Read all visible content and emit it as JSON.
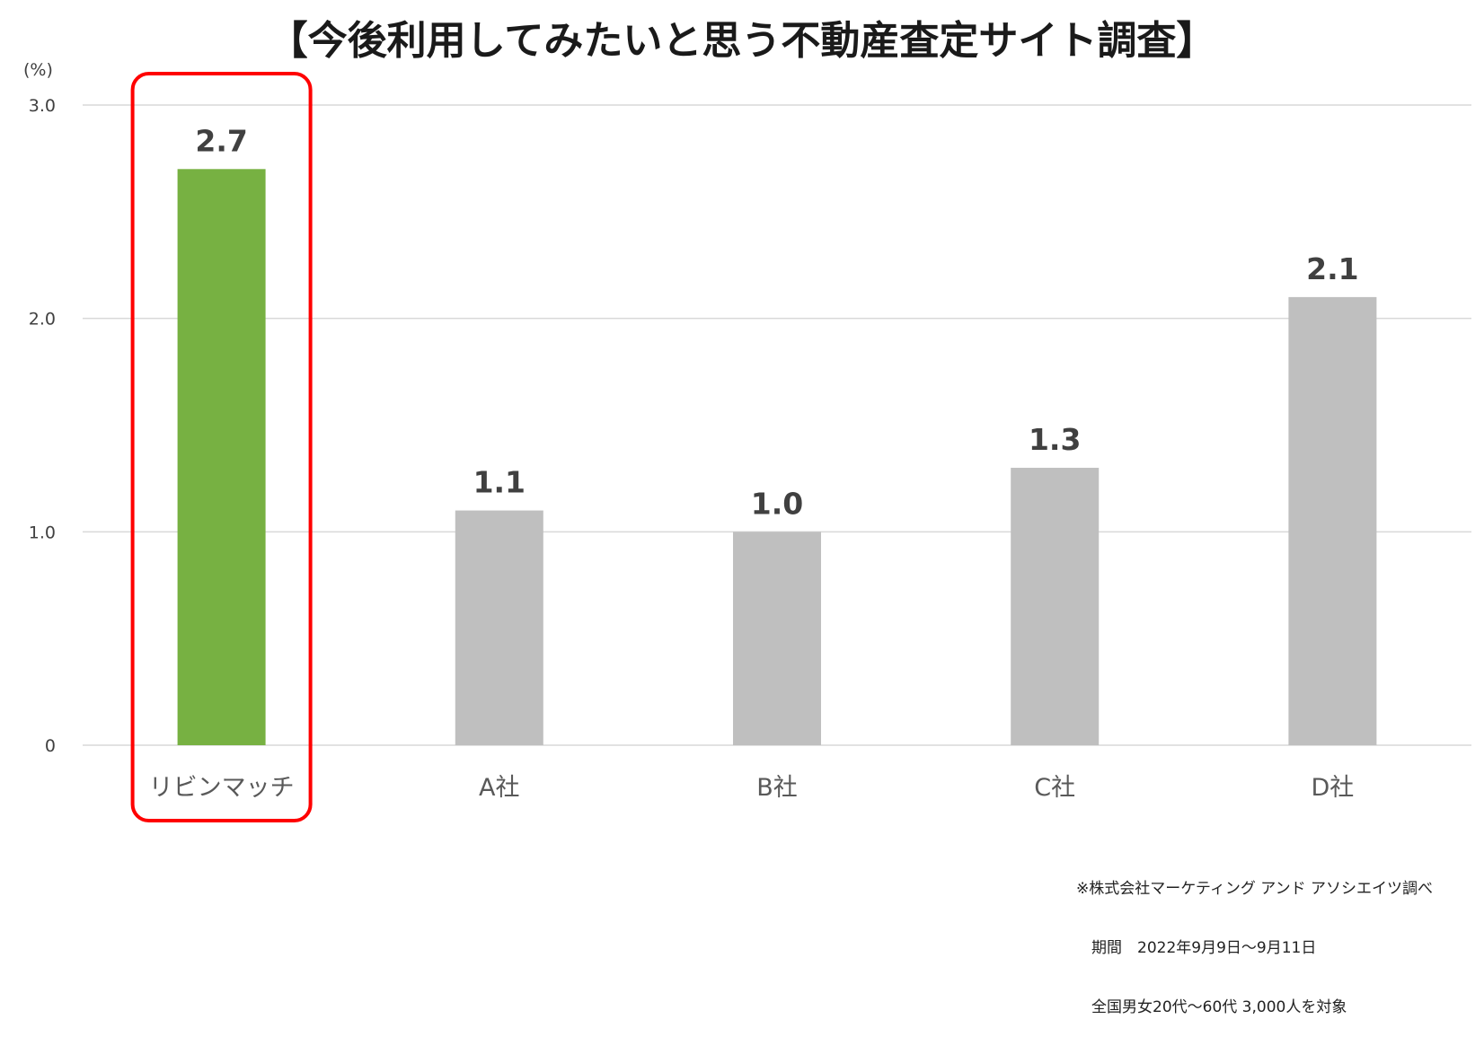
{
  "chart_data": {
    "type": "bar",
    "title": "【今後利用してみたいと思う不動産査定サイト調査】",
    "ylabel": "(%)",
    "xlabel": "",
    "categories": [
      "リビンマッチ",
      "A社",
      "B社",
      "C社",
      "D社"
    ],
    "values": [
      2.7,
      1.1,
      1.0,
      1.3,
      2.1
    ],
    "data_labels": [
      "2.7",
      "1.1",
      "1.0",
      "1.3",
      "2.1"
    ],
    "ylim": [
      0,
      3.0
    ],
    "yticks": [
      0,
      1.0,
      2.0,
      3.0
    ],
    "ytick_labels": [
      "0",
      "1.0",
      "2.0",
      "3.0"
    ],
    "grid": true,
    "legend": "none",
    "highlight_index": 0,
    "colors": {
      "highlight": "#77b142",
      "default": "#bfbfbf",
      "highlight_box": "#ff0000",
      "gridline": "#d9d9d9"
    }
  },
  "notes": [
    "※株式会社マーケティング アンド アソシエイツ調べ",
    "　期間　2022年9月9日～9月11日",
    "　全国男女20代～60代 3,000人を対象"
  ]
}
